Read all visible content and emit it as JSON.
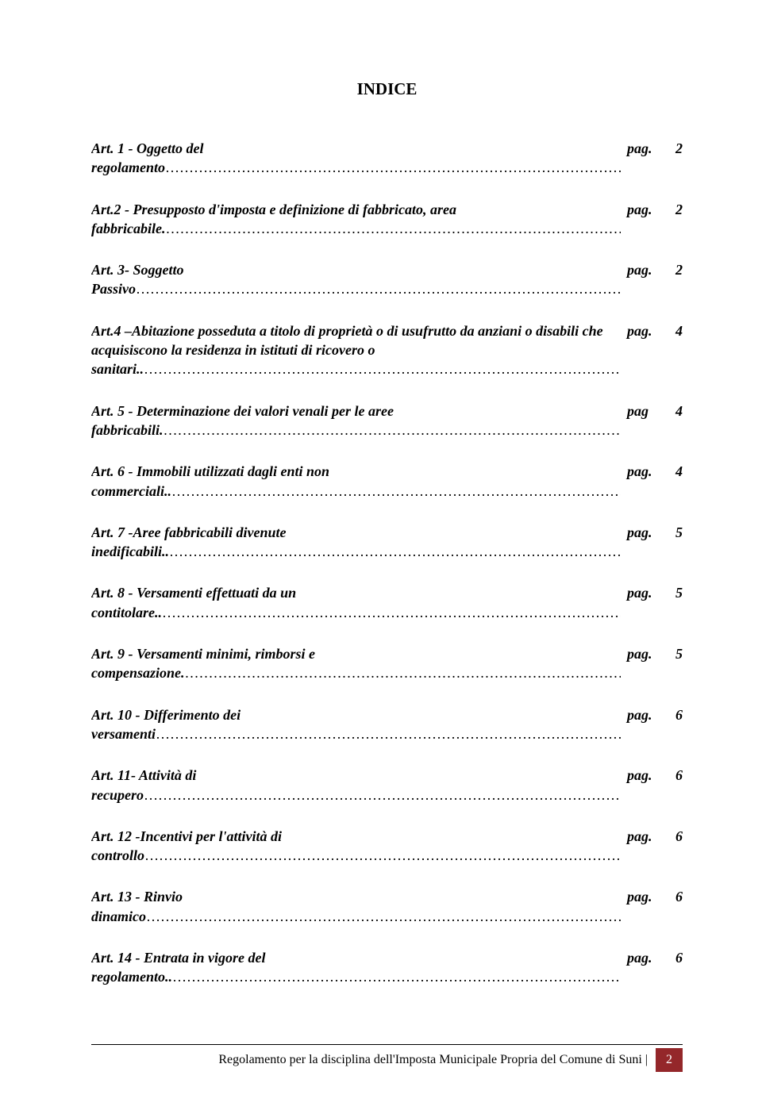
{
  "title": "INDICE",
  "toc": [
    {
      "label": "Art. 1 - Oggetto del regolamento",
      "pageLabel": "pag.",
      "pageNum": "2"
    },
    {
      "label": "Art.2 - Presupposto d'imposta e definizione di fabbricato, area fabbricabile.",
      "pageLabel": "pag.",
      "pageNum": "2"
    },
    {
      "label": "Art. 3- Soggetto Passivo",
      "pageLabel": "pag.",
      "pageNum": "2"
    },
    {
      "label": "Art.4 –Abitazione posseduta a titolo di proprietà o di usufrutto da anziani o disabili che acquisiscono la residenza in istituti di ricovero o sanitari..",
      "pageLabel": "pag.",
      "pageNum": "4"
    },
    {
      "label": "Art. 5 - Determinazione dei valori venali per le aree fabbricabili.",
      "pageLabel": "pag",
      "pageNum": "4"
    },
    {
      "label": "Art. 6 - Immobili utilizzati dagli enti non commerciali..",
      "pageLabel": "pag.",
      "pageNum": "4"
    },
    {
      "label": "Art. 7 -Aree fabbricabili divenute inedificabili..",
      "pageLabel": "pag.",
      "pageNum": "5"
    },
    {
      "label": "Art. 8 - Versamenti effettuati da un contitolare..",
      "pageLabel": "pag.",
      "pageNum": "5"
    },
    {
      "label": "Art. 9 - Versamenti minimi, rimborsi e compensazione.",
      "pageLabel": "pag.",
      "pageNum": "5"
    },
    {
      "label": "Art. 10 - Differimento dei versamenti",
      "pageLabel": "pag.",
      "pageNum": "6"
    },
    {
      "label": "Art. 11- Attività di recupero",
      "pageLabel": "pag.",
      "pageNum": "6"
    },
    {
      "label": "Art. 12 -Incentivi per l'attività di controllo",
      "pageLabel": "pag.",
      "pageNum": "6"
    },
    {
      "label": "Art. 13 - Rinvio dinamico",
      "pageLabel": "pag.",
      "pageNum": "6"
    },
    {
      "label": "Art. 14 - Entrata in vigore del regolamento..",
      "pageLabel": "pag.",
      "pageNum": "6"
    }
  ],
  "footer": {
    "text": "Regolamento per la disciplina dell'Imposta Municipale Propria del Comune di Suni |",
    "pageNum": "2",
    "badgeBg": "#94272a",
    "badgeFg": "#ffffff"
  }
}
